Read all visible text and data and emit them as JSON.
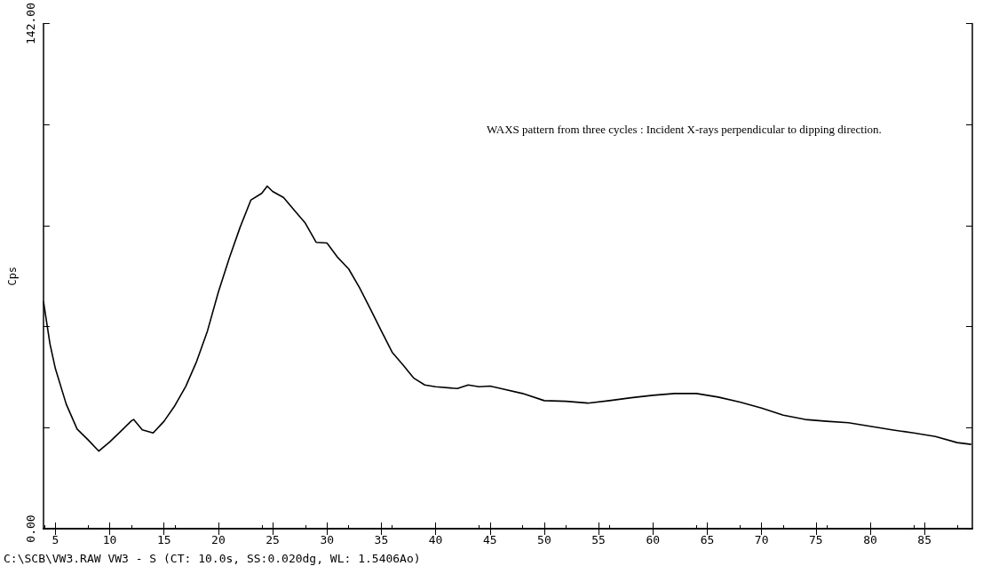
{
  "chart_data": {
    "type": "line",
    "ylabel": "Cps",
    "annotations": [
      "WAXS pattern from three cycles : Incident X-rays perpendicular to dipping direction.",
      "C:\\SCB\\VW3.RAW VW3 - S (CT: 10.0s, SS:0.020dg, WL: 1.5406Ao)"
    ],
    "x": [
      3.9,
      4.5,
      5,
      6,
      7,
      8,
      9,
      10,
      11,
      12,
      12.2,
      13,
      14,
      15,
      16,
      17,
      18,
      19,
      20,
      21,
      22,
      23,
      24,
      24.5,
      25,
      26,
      27,
      28,
      29,
      30,
      31,
      32,
      33,
      34,
      35,
      36,
      37,
      38,
      39,
      40,
      42,
      43,
      44,
      45,
      46,
      48,
      50,
      52,
      54,
      56,
      58,
      60,
      62,
      64,
      66,
      68,
      70,
      72,
      74,
      76,
      78,
      80,
      82,
      84,
      86,
      88,
      89.3
    ],
    "series": [
      {
        "color": "#000000",
        "values": [
          64,
          52,
          45,
          35,
          28,
          25,
          21.8,
          24.4,
          27.3,
          30.3,
          30.7,
          27.8,
          26.9,
          30.2,
          34.6,
          40,
          47,
          55.6,
          66.5,
          76,
          84.7,
          92.4,
          94.3,
          96.3,
          94.8,
          93.1,
          89.5,
          85.9,
          80.5,
          80.3,
          76.2,
          73,
          67.7,
          61.7,
          55.6,
          49.6,
          46,
          42.3,
          40.4,
          39.9,
          39.4,
          40.4,
          39.9,
          40.1,
          39.4,
          38,
          36,
          35.8,
          35.3,
          36,
          36.8,
          37.5,
          38,
          38,
          37,
          35.6,
          33.9,
          31.9,
          30.7,
          30.2,
          29.8,
          28.8,
          27.8,
          26.9,
          25.9,
          24.2,
          23.7
        ]
      }
    ],
    "xlim": [
      3.9,
      89.4
    ],
    "xticks": [
      5,
      10,
      15,
      20,
      25,
      30,
      35,
      40,
      45,
      50,
      55,
      60,
      65,
      70,
      75,
      80,
      85
    ],
    "ylim": [
      0,
      142
    ],
    "yticks": [
      {
        "value": 0,
        "label": "0.00"
      },
      {
        "value": 28.4,
        "label": null
      },
      {
        "value": 56.8,
        "label": null
      },
      {
        "value": 85.2,
        "label": null
      },
      {
        "value": 113.6,
        "label": null
      },
      {
        "value": 142,
        "label": "142.00"
      }
    ],
    "grid": false,
    "marker": "none",
    "line_style": "solid"
  }
}
